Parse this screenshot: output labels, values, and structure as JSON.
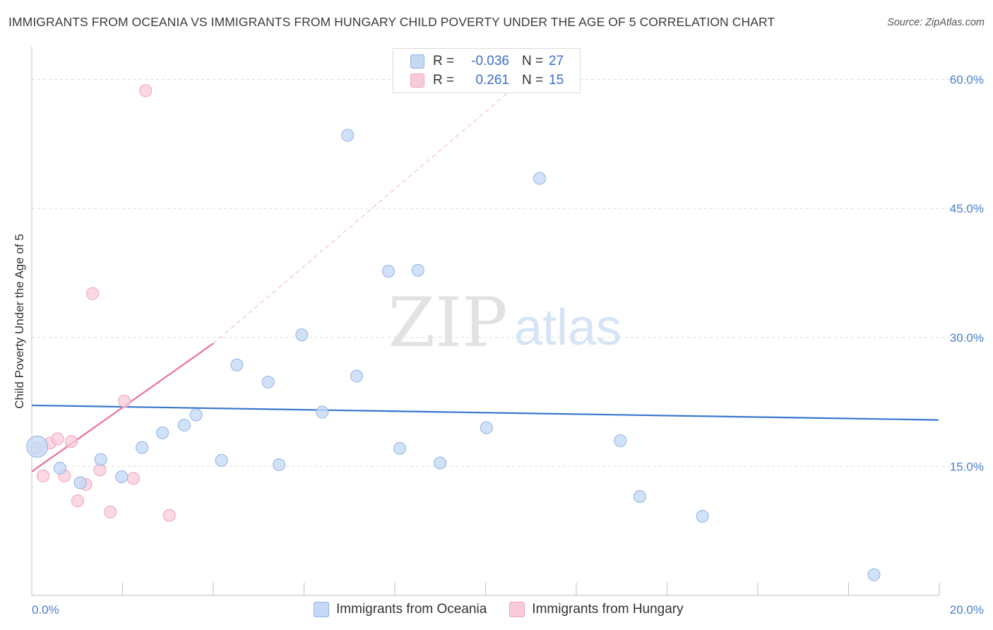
{
  "title": "IMMIGRANTS FROM OCEANIA VS IMMIGRANTS FROM HUNGARY CHILD POVERTY UNDER THE AGE OF 5 CORRELATION CHART",
  "source": "Source: ZipAtlas.com",
  "watermark": {
    "zip": "ZIP",
    "atlas": "atlas"
  },
  "legend": {
    "rows": [
      {
        "r_label": "R =",
        "r_value": "-0.036",
        "n_label": "N =",
        "n_value": "27"
      },
      {
        "r_label": "R =",
        "r_value": "0.261",
        "n_label": "N =",
        "n_value": "15"
      }
    ]
  },
  "colors": {
    "oceania_fill": "#c5d9f5",
    "oceania_stroke": "#8fb3e6",
    "oceania_line": "#3876d0",
    "hungary_fill": "#f9cbd8",
    "hungary_stroke": "#eea3ba",
    "hungary_line": "#e8709a",
    "tick_text": "#4a7fd0",
    "grid": "#dcdcdc"
  },
  "chart_data": {
    "type": "scatter",
    "title": "IMMIGRANTS FROM OCEANIA VS IMMIGRANTS FROM HUNGARY CHILD POVERTY UNDER THE AGE OF 5 CORRELATION CHART",
    "xlabel": "",
    "ylabel": "Child Poverty Under the Age of 5",
    "xlim": [
      0,
      20
    ],
    "ylim": [
      0,
      63
    ],
    "x_tick_labels": [
      "0.0%",
      "20.0%"
    ],
    "y_ticks": [
      15,
      30,
      45,
      60
    ],
    "y_tick_labels": [
      "15.0%",
      "30.0%",
      "45.0%",
      "60.0%"
    ],
    "series": [
      {
        "name": "Immigrants from Oceania",
        "r": -0.036,
        "n": 27,
        "points": [
          {
            "x": 0.12,
            "y": 17.3,
            "big": true
          },
          {
            "x": 0.62,
            "y": 14.8
          },
          {
            "x": 1.07,
            "y": 13.1
          },
          {
            "x": 1.52,
            "y": 15.8
          },
          {
            "x": 1.98,
            "y": 13.8
          },
          {
            "x": 2.43,
            "y": 17.2
          },
          {
            "x": 2.88,
            "y": 18.9
          },
          {
            "x": 3.36,
            "y": 19.8
          },
          {
            "x": 3.62,
            "y": 21.0
          },
          {
            "x": 4.18,
            "y": 15.7
          },
          {
            "x": 4.52,
            "y": 26.8
          },
          {
            "x": 5.21,
            "y": 24.8
          },
          {
            "x": 5.45,
            "y": 15.2
          },
          {
            "x": 5.95,
            "y": 30.3
          },
          {
            "x": 6.4,
            "y": 21.3
          },
          {
            "x": 6.96,
            "y": 53.5
          },
          {
            "x": 7.16,
            "y": 25.5
          },
          {
            "x": 7.86,
            "y": 37.7
          },
          {
            "x": 8.11,
            "y": 17.1
          },
          {
            "x": 8.51,
            "y": 37.8
          },
          {
            "x": 9.0,
            "y": 15.4
          },
          {
            "x": 10.02,
            "y": 19.5
          },
          {
            "x": 11.19,
            "y": 48.5
          },
          {
            "x": 12.97,
            "y": 18.0
          },
          {
            "x": 13.4,
            "y": 11.5
          },
          {
            "x": 14.78,
            "y": 9.2
          },
          {
            "x": 18.56,
            "y": 2.4
          }
        ],
        "trend": {
          "x1": 0.0,
          "y1": 22.1,
          "x2": 19.98,
          "y2": 20.4
        }
      },
      {
        "name": "Immigrants from Hungary",
        "r": 0.261,
        "n": 15,
        "points": [
          {
            "x": 0.1,
            "y": 17.1
          },
          {
            "x": 0.25,
            "y": 13.9
          },
          {
            "x": 0.4,
            "y": 17.7
          },
          {
            "x": 0.57,
            "y": 18.2
          },
          {
            "x": 0.72,
            "y": 13.9
          },
          {
            "x": 0.87,
            "y": 17.9
          },
          {
            "x": 1.01,
            "y": 11.0
          },
          {
            "x": 1.19,
            "y": 12.9
          },
          {
            "x": 1.34,
            "y": 35.1
          },
          {
            "x": 1.5,
            "y": 14.6
          },
          {
            "x": 1.73,
            "y": 9.7
          },
          {
            "x": 2.04,
            "y": 22.6
          },
          {
            "x": 2.24,
            "y": 13.6
          },
          {
            "x": 2.51,
            "y": 58.7
          },
          {
            "x": 3.03,
            "y": 9.3
          }
        ],
        "trend": {
          "x1": 0.0,
          "y1": 14.4,
          "x2": 4.0,
          "y2": 29.3
        },
        "trend_dashed": {
          "x1": 4.0,
          "y1": 29.3,
          "x2": 11.5,
          "y2": 63.0
        }
      }
    ]
  }
}
